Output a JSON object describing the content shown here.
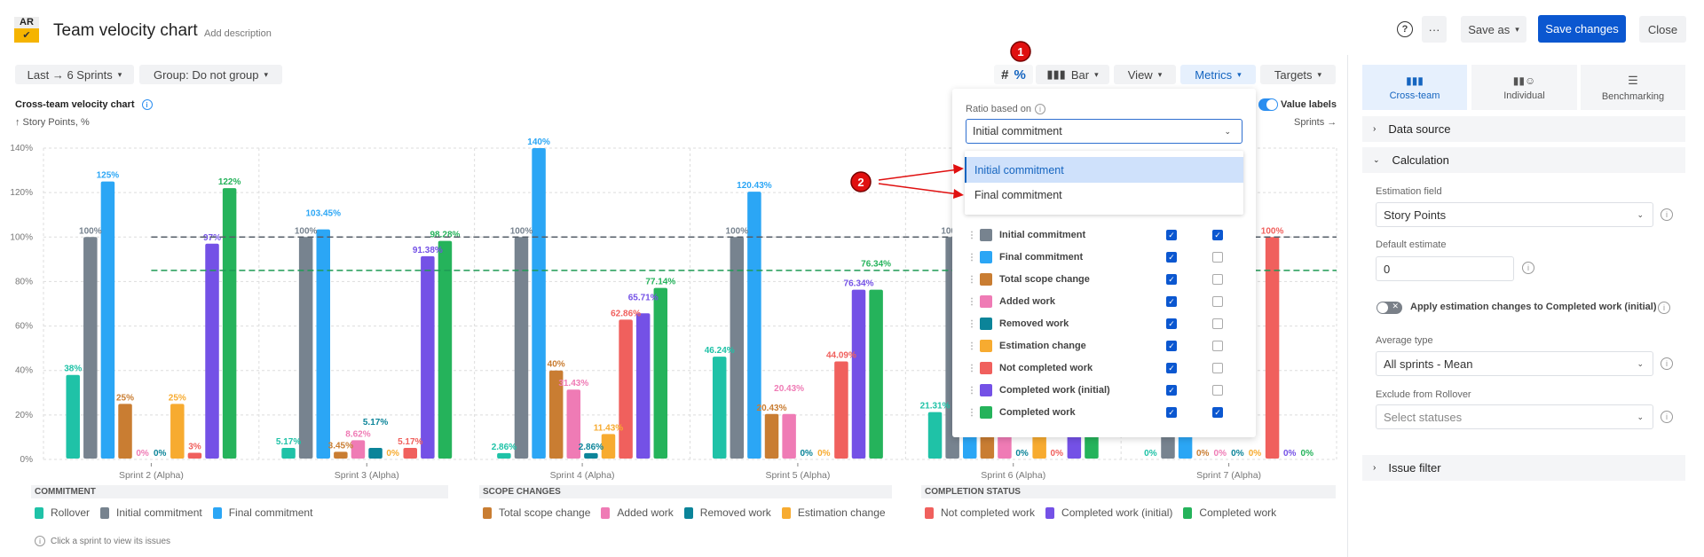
{
  "header": {
    "logo_text": "AR",
    "title": "Team velocity chart",
    "add_description": "Add description",
    "help": "?",
    "more": "···",
    "save_as": "Save as",
    "save_changes": "Save changes",
    "close": "Close"
  },
  "filters": {
    "period": "Last → 6 Sprints",
    "group": "Group: Do not group"
  },
  "toolbar": {
    "hash": "#",
    "percent": "%",
    "bar": "Bar",
    "view": "View",
    "metrics": "Metrics",
    "targets": "Targets",
    "value_labels": "Value labels",
    "value_labels_on": true,
    "sprints_axis": "Sprints →"
  },
  "chart_title": "Cross-team velocity chart",
  "y_unit": "↑ Story Points, %",
  "chart_data": {
    "type": "bar",
    "ylim": [
      0,
      140
    ],
    "y_ticks": [
      "0%",
      "20%",
      "40%",
      "60%",
      "80%",
      "100%",
      "120%",
      "140%"
    ],
    "grid": true,
    "categories": [
      "Sprint 2 (Alpha)",
      "Sprint 3 (Alpha)",
      "Sprint 4 (Alpha)",
      "Sprint 5 (Alpha)",
      "Sprint 6 (Alpha)",
      "Sprint 7 (Alpha)"
    ],
    "series": [
      {
        "name": "Rollover",
        "color": "#1fc2a7",
        "values": [
          38,
          5.17,
          2.86,
          46.24,
          21.31,
          0
        ]
      },
      {
        "name": "Initial commitment",
        "color": "#77838f",
        "values": [
          100,
          100,
          100,
          100,
          100,
          null
        ]
      },
      {
        "name": "Final commitment",
        "color": "#2ba6f5",
        "values": [
          125,
          103.45,
          140,
          120.43,
          null,
          null
        ]
      },
      {
        "name": "Total scope change",
        "color": "#c97d32",
        "values": [
          25,
          3.45,
          40,
          20.43,
          null,
          0
        ]
      },
      {
        "name": "Added work",
        "color": "#ef7bb5",
        "values": [
          0,
          8.62,
          31.43,
          20.43,
          null,
          0
        ]
      },
      {
        "name": "Removed work",
        "color": "#0b8499",
        "values": [
          0,
          5.17,
          2.86,
          0,
          0,
          0
        ]
      },
      {
        "name": "Estimation change",
        "color": "#f7ab30",
        "values": [
          25,
          0,
          11.43,
          0,
          null,
          0
        ]
      },
      {
        "name": "Not completed work",
        "color": "#f0605d",
        "values": [
          3,
          5.17,
          62.86,
          44.09,
          0,
          100
        ]
      },
      {
        "name": "Completed work (initial)",
        "color": "#7451e6",
        "values": [
          97,
          91.38,
          65.71,
          76.34,
          null,
          0
        ]
      },
      {
        "name": "Completed work",
        "color": "#25b35b",
        "values": [
          122,
          98.28,
          77.14,
          76.34,
          null,
          0
        ]
      }
    ],
    "target_lines": [
      {
        "value": 100,
        "color": "#555e68"
      },
      {
        "value": 85,
        "color": "#1f9a55"
      }
    ]
  },
  "legend": [
    {
      "title": "COMMITMENT",
      "items": [
        {
          "label": "Rollover",
          "color": "#1fc2a7"
        },
        {
          "label": "Initial commitment",
          "color": "#77838f"
        },
        {
          "label": "Final commitment",
          "color": "#2ba6f5"
        }
      ]
    },
    {
      "title": "SCOPE CHANGES",
      "items": [
        {
          "label": "Total scope change",
          "color": "#c97d32"
        },
        {
          "label": "Added work",
          "color": "#ef7bb5"
        },
        {
          "label": "Removed work",
          "color": "#0b8499"
        },
        {
          "label": "Estimation change",
          "color": "#f7ab30"
        }
      ]
    },
    {
      "title": "COMPLETION STATUS",
      "items": [
        {
          "label": "Not completed work",
          "color": "#f0605d"
        },
        {
          "label": "Completed work (initial)",
          "color": "#7451e6"
        },
        {
          "label": "Completed work",
          "color": "#25b35b"
        }
      ]
    }
  ],
  "footer_note": "Click a sprint to view its issues",
  "metrics_popup": {
    "ratio_label": "Ratio based on",
    "ratio_value": "Initial commitment",
    "options": [
      "Initial commitment",
      "Final commitment"
    ],
    "rows": [
      {
        "label": "Initial commitment",
        "color": "#77838f",
        "show": true,
        "ratio": true
      },
      {
        "label": "Final commitment",
        "color": "#2ba6f5",
        "show": true,
        "ratio": false
      },
      {
        "label": "Total scope change",
        "color": "#c97d32",
        "show": true,
        "ratio": false
      },
      {
        "label": "Added work",
        "color": "#ef7bb5",
        "show": true,
        "ratio": false
      },
      {
        "label": "Removed work",
        "color": "#0b8499",
        "show": true,
        "ratio": false
      },
      {
        "label": "Estimation change",
        "color": "#f7ab30",
        "show": true,
        "ratio": false
      },
      {
        "label": "Not completed work",
        "color": "#f0605d",
        "show": true,
        "ratio": false
      },
      {
        "label": "Completed work (initial)",
        "color": "#7451e6",
        "show": true,
        "ratio": false
      },
      {
        "label": "Completed work",
        "color": "#25b35b",
        "show": true,
        "ratio": true
      }
    ]
  },
  "side_panel": {
    "tabs": [
      "Cross-team",
      "Individual",
      "Benchmarking"
    ],
    "data_source": "Data source",
    "calculation": "Calculation",
    "estimation_field_label": "Estimation field",
    "estimation_field": "Story Points",
    "default_estimate_label": "Default estimate",
    "default_estimate": "0",
    "apply_toggle_label": "Apply estimation changes to Completed work (initial)",
    "apply_toggle_on": false,
    "average_type_label": "Average type",
    "average_type": "All sprints - Mean",
    "exclude_label": "Exclude from Rollover",
    "exclude_placeholder": "Select statuses",
    "issue_filter": "Issue filter"
  },
  "annotations": {
    "marker1": "1",
    "marker2": "2",
    "color": "#e01010"
  }
}
